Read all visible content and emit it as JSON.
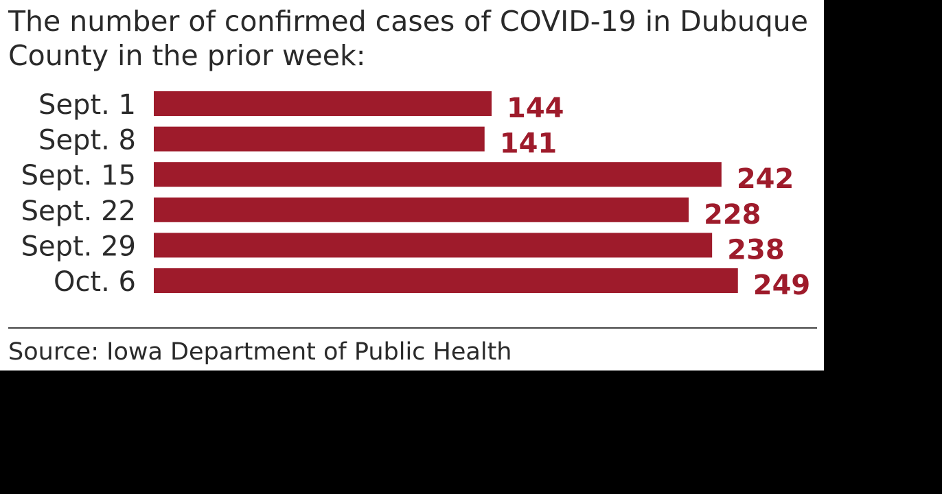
{
  "chart_data": {
    "type": "bar",
    "orientation": "horizontal",
    "title": "The number of confirmed cases of COVID-19 in Dubuque County in the prior week:",
    "categories": [
      "Sept. 1",
      "Sept. 8",
      "Sept. 15",
      "Sept. 22",
      "Sept. 29",
      "Oct. 6"
    ],
    "values": [
      144,
      141,
      242,
      228,
      238,
      249
    ],
    "data_labels": [
      "144",
      "141",
      "242",
      "228",
      "238",
      "249"
    ],
    "source": "Source: Iowa Department of Public Health",
    "xlim": [
      0,
      249
    ],
    "grid": false,
    "colors": {
      "bar": "#9e1b2b",
      "label": "#9e1b2b",
      "text": "#2a2a2a"
    }
  }
}
